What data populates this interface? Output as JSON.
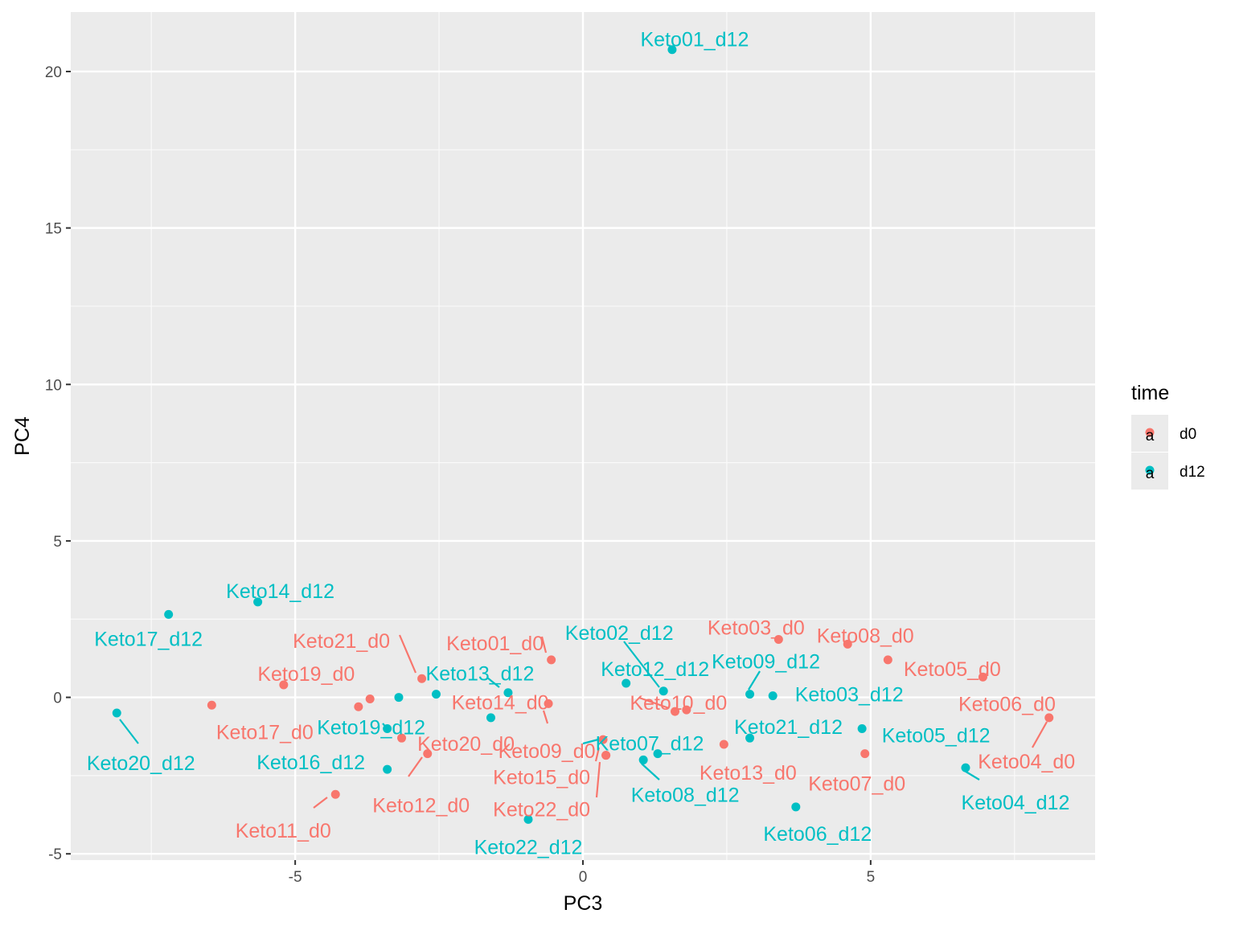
{
  "chart_data": {
    "type": "scatter",
    "xlabel": "PC3",
    "ylabel": "PC4",
    "xlim": [
      -8.9,
      8.9
    ],
    "ylim": [
      -5.2,
      21.9
    ],
    "xticks": [
      -5,
      0,
      5
    ],
    "yticks": [
      -5,
      0,
      5,
      10,
      15,
      20
    ],
    "grid": true,
    "legend": {
      "title": "time",
      "position": "right",
      "glyph": "a",
      "entries": [
        {
          "name": "d0",
          "color": "#F8766D"
        },
        {
          "name": "d12",
          "color": "#00BFC4"
        }
      ]
    },
    "series": [
      {
        "name": "d0",
        "color": "#F8766D",
        "points": [
          {
            "label": "Keto01_d0",
            "x": -0.55,
            "y": 1.2
          },
          {
            "label": "Keto03_d0",
            "x": 3.4,
            "y": 1.85
          },
          {
            "label": "Keto04_d0",
            "x": 8.1,
            "y": -0.65
          },
          {
            "label": "Keto05_d0",
            "x": 5.3,
            "y": 1.2
          },
          {
            "label": "Keto06_d0",
            "x": 6.95,
            "y": 0.65
          },
          {
            "label": "Keto07_d0",
            "x": 4.9,
            "y": -1.8
          },
          {
            "label": "Keto08_d0",
            "x": 4.6,
            "y": 1.7
          },
          {
            "label": "Keto09_d0",
            "x": 0.35,
            "y": -1.35
          },
          {
            "label": "Keto10_d0",
            "x": 1.8,
            "y": -0.4
          },
          {
            "label": "Keto11_d0",
            "x": -4.3,
            "y": -3.1
          },
          {
            "label": "Keto12_d0",
            "x": -2.7,
            "y": -1.8
          },
          {
            "label": "Keto13_d0",
            "x": 2.45,
            "y": -1.5
          },
          {
            "label": "Keto14_d0",
            "x": -0.6,
            "y": -0.2
          },
          {
            "label": "Keto15_d0",
            "x": 0.4,
            "y": -1.85
          },
          {
            "label": "Keto17_d0",
            "x": -6.45,
            "y": -0.25
          },
          {
            "label": "Keto19_d0",
            "x": -5.2,
            "y": 0.4
          },
          {
            "label": "Keto20_d0",
            "x": -3.15,
            "y": -1.3
          },
          {
            "label": "Keto21_d0",
            "x": -2.8,
            "y": 0.6
          },
          {
            "label": "Keto22_d0",
            "x": 0.4,
            "y": -1.85
          },
          {
            "label": "",
            "x": -3.7,
            "y": -0.05
          },
          {
            "label": "",
            "x": -3.9,
            "y": -0.3
          },
          {
            "label": "",
            "x": 1.6,
            "y": -0.45
          }
        ]
      },
      {
        "name": "d12",
        "color": "#00BFC4",
        "points": [
          {
            "label": "Keto01_d12",
            "x": 1.55,
            "y": 20.7
          },
          {
            "label": "Keto02_d12",
            "x": 1.4,
            "y": 0.2
          },
          {
            "label": "Keto03_d12",
            "x": 3.3,
            "y": 0.05
          },
          {
            "label": "Keto04_d12",
            "x": 6.65,
            "y": -2.25
          },
          {
            "label": "Keto05_d12",
            "x": 4.85,
            "y": -1.0
          },
          {
            "label": "Keto06_d12",
            "x": 3.7,
            "y": -3.5
          },
          {
            "label": "Keto07_d12",
            "x": 1.3,
            "y": -1.8
          },
          {
            "label": "Keto08_d12",
            "x": 1.05,
            "y": -2.0
          },
          {
            "label": "Keto09_d12",
            "x": 2.9,
            "y": 0.1
          },
          {
            "label": "Keto12_d12",
            "x": 0.75,
            "y": 0.45
          },
          {
            "label": "Keto13_d12",
            "x": -1.3,
            "y": 0.15
          },
          {
            "label": "Keto14_d12",
            "x": -5.65,
            "y": 3.05
          },
          {
            "label": "Keto16_d12",
            "x": -3.4,
            "y": -2.3
          },
          {
            "label": "Keto17_d12",
            "x": -7.2,
            "y": 2.65
          },
          {
            "label": "Keto19_d12",
            "x": -3.4,
            "y": -1.0
          },
          {
            "label": "Keto20_d12",
            "x": -8.1,
            "y": -0.5
          },
          {
            "label": "Keto21_d12",
            "x": 2.9,
            "y": -1.3
          },
          {
            "label": "Keto22_d12",
            "x": -0.95,
            "y": -3.9
          },
          {
            "label": "",
            "x": -3.2,
            "y": 0.0
          },
          {
            "label": "",
            "x": -2.55,
            "y": 0.1
          },
          {
            "label": "",
            "x": -1.6,
            "y": -0.65
          }
        ]
      }
    ]
  }
}
